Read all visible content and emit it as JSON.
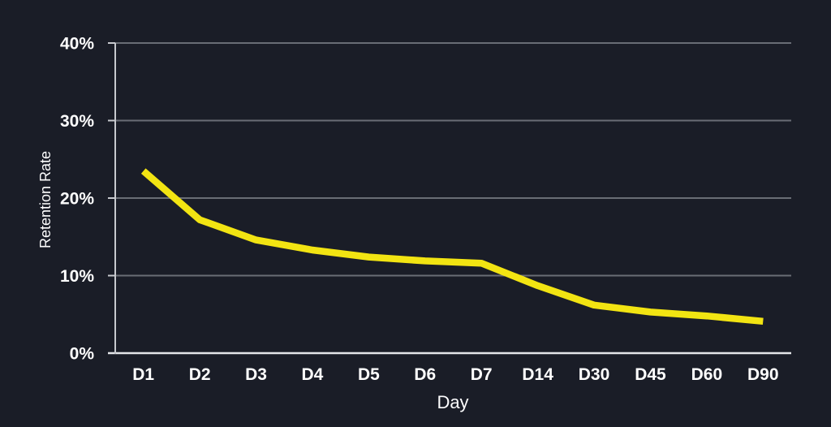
{
  "chart": {
    "background_color": "#1a1d27",
    "line_color": "#f2e412",
    "grid_color": "#696d75",
    "axis_color": "#c7c9ce",
    "baseline_color": "#e4e6e9",
    "text_color": "#ffffff"
  },
  "chart_data": {
    "type": "line",
    "title": "",
    "xlabel": "Day",
    "ylabel": "Retention Rate",
    "categories": [
      "D1",
      "D2",
      "D3",
      "D4",
      "D5",
      "D6",
      "D7",
      "D14",
      "D30",
      "D45",
      "D60",
      "D90"
    ],
    "values": [
      23.5,
      17.2,
      14.6,
      13.3,
      12.4,
      11.9,
      11.6,
      8.7,
      6.2,
      5.3,
      4.8,
      4.1
    ],
    "series_name": "Retention Rate",
    "ylim": [
      0,
      40
    ],
    "yticks": [
      0,
      10,
      20,
      30,
      40
    ],
    "ytick_labels": [
      "0%",
      "10%",
      "20%",
      "30%",
      "40%"
    ],
    "grid": "horizontal",
    "legend": "none"
  }
}
